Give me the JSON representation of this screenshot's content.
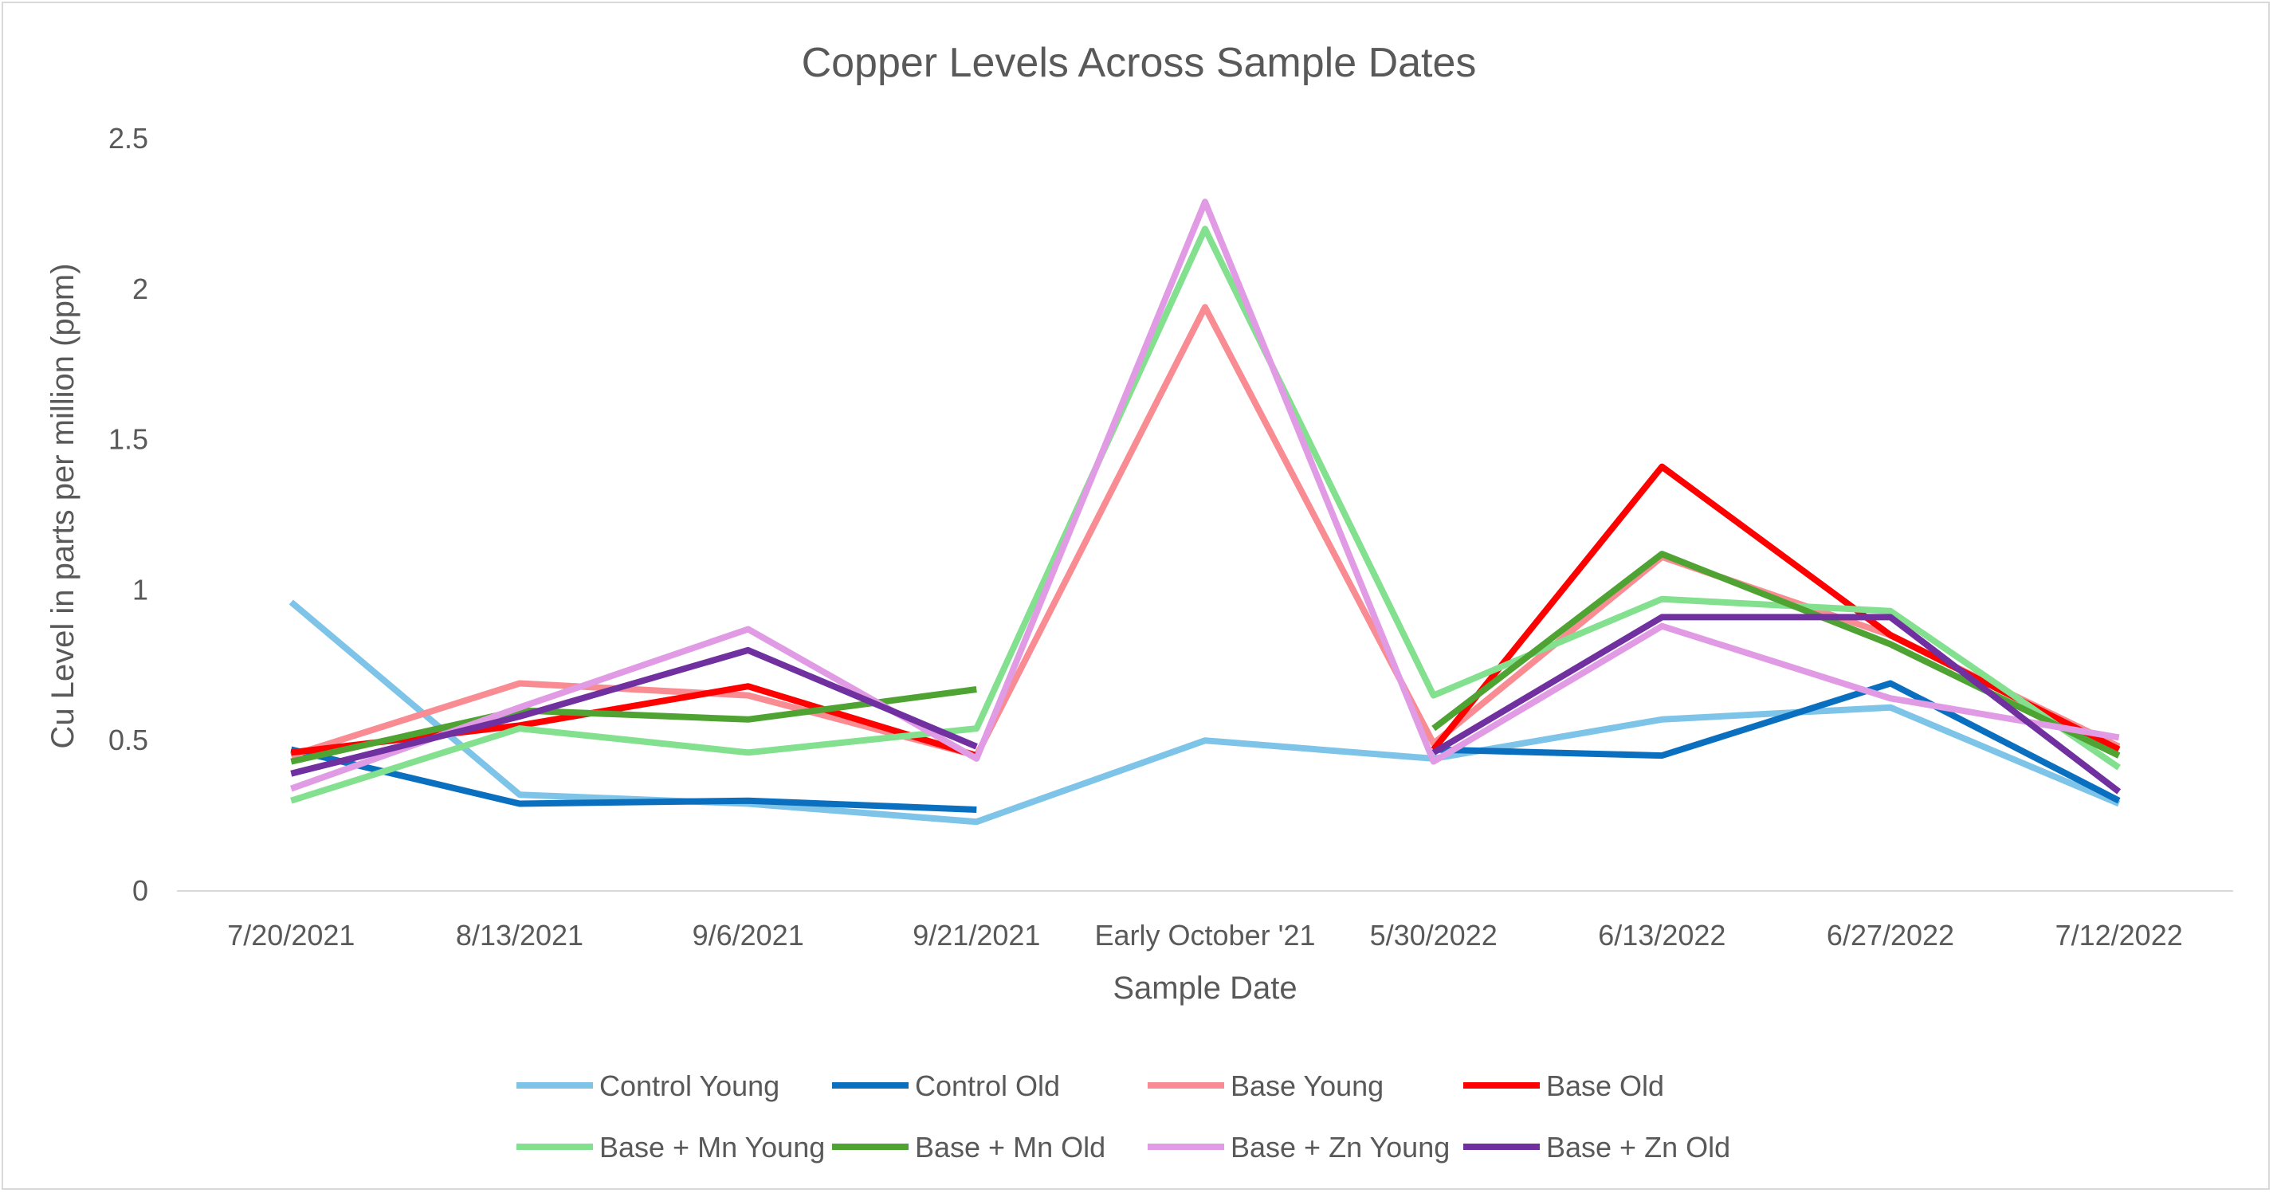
{
  "chart_data": {
    "type": "line",
    "title": "Copper Levels Across Sample Dates",
    "xlabel": "Sample Date",
    "ylabel": "Cu Level in parts per million (ppm)",
    "categories": [
      "7/20/2021",
      "8/13/2021",
      "9/6/2021",
      "9/21/2021",
      "Early October '21",
      "5/30/2022",
      "6/13/2022",
      "6/27/2022",
      "7/12/2022"
    ],
    "ylim": [
      0,
      2.5
    ],
    "yticks": [
      "0",
      "0.5",
      "1",
      "1.5",
      "2",
      "2.5"
    ],
    "grid": false,
    "legend_position": "bottom",
    "series": [
      {
        "name": "Control Young",
        "color": "#7dc4e8",
        "values": [
          0.96,
          0.32,
          0.29,
          0.23,
          0.5,
          0.44,
          0.57,
          0.61,
          0.29
        ]
      },
      {
        "name": "Control Old",
        "color": "#0b6fbf",
        "values": [
          0.47,
          0.29,
          0.3,
          0.27,
          null,
          0.47,
          0.45,
          0.69,
          0.3
        ]
      },
      {
        "name": "Base Young",
        "color": "#f98b92",
        "values": [
          0.45,
          0.69,
          0.65,
          0.45,
          1.94,
          0.49,
          1.11,
          0.85,
          0.48
        ]
      },
      {
        "name": "Base Old",
        "color": "#ff0000",
        "values": [
          0.46,
          0.55,
          0.68,
          0.45,
          null,
          0.47,
          1.41,
          0.85,
          0.47
        ]
      },
      {
        "name": "Base + Mn Young",
        "color": "#82e08e",
        "values": [
          0.3,
          0.54,
          0.46,
          0.54,
          2.2,
          0.65,
          0.97,
          0.93,
          0.41
        ]
      },
      {
        "name": "Base + Mn Old",
        "color": "#4ea332",
        "values": [
          0.43,
          0.6,
          0.57,
          0.67,
          null,
          0.54,
          1.12,
          0.82,
          0.45
        ]
      },
      {
        "name": "Base + Zn Young",
        "color": "#e09be4",
        "values": [
          0.34,
          0.61,
          0.87,
          0.44,
          2.29,
          0.43,
          0.88,
          0.64,
          0.51
        ]
      },
      {
        "name": "Base + Zn Old",
        "color": "#7030a0",
        "values": [
          0.39,
          0.58,
          0.8,
          0.48,
          null,
          0.46,
          0.91,
          0.91,
          0.33
        ]
      }
    ]
  }
}
